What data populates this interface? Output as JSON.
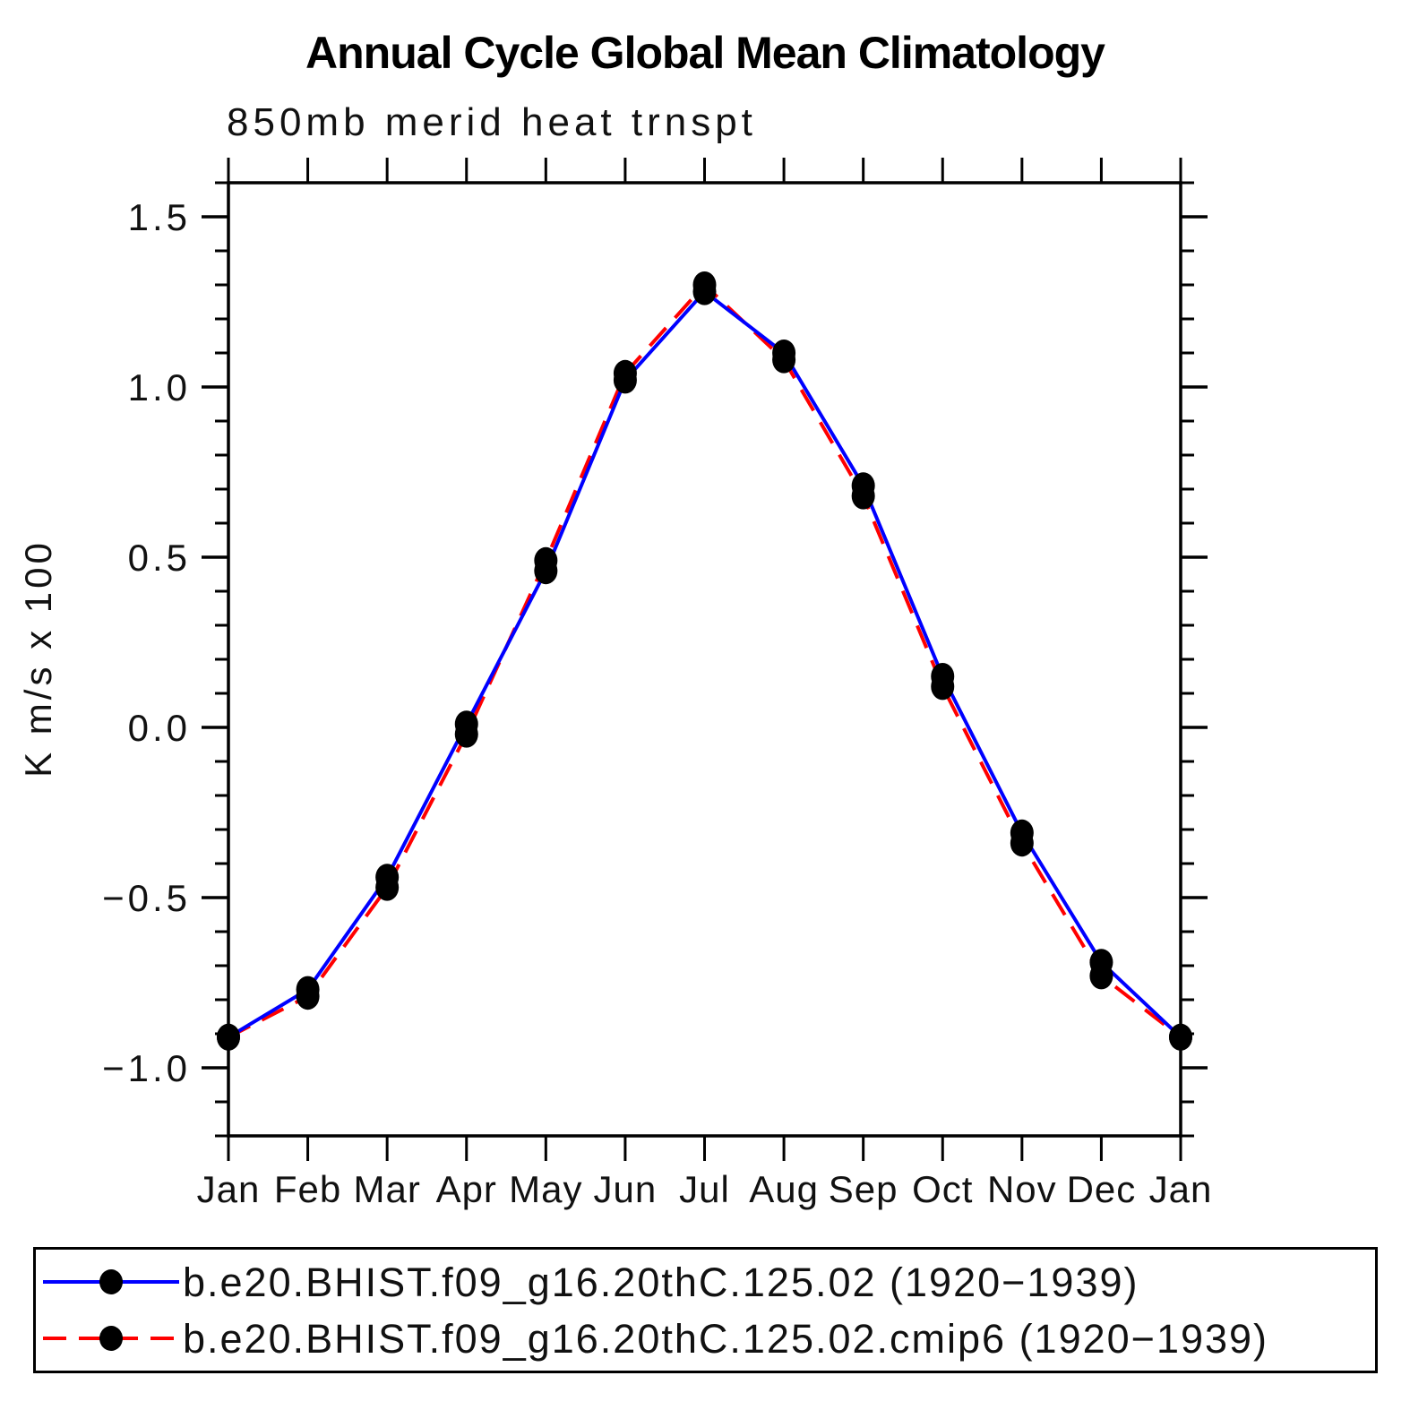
{
  "page_title": "Annual Cycle Global Mean Climatology",
  "chart_data": {
    "type": "line",
    "suptitle": "Annual Cycle Global Mean Climatology",
    "title": "850mb merid heat trnspt",
    "xlabel": "",
    "ylabel": "K m/s x 100",
    "x_tick_labels": [
      "Jan",
      "Feb",
      "Mar",
      "Apr",
      "May",
      "Jun",
      "Jul",
      "Aug",
      "Sep",
      "Oct",
      "Nov",
      "Dec",
      "Jan"
    ],
    "y_tick_values": [
      1.5,
      1.0,
      0.5,
      0.0,
      -0.5,
      -1.0
    ],
    "y_tick_labels": [
      "1.5",
      "1.0",
      "0.5",
      "0.0",
      "−0.5",
      "−1.0"
    ],
    "ylim": [
      -1.2,
      1.6
    ],
    "y_minor_step": 0.1,
    "grid": "off",
    "legend_position": "bottom",
    "frame_color": "#000000",
    "marker_color": "#000000",
    "series": [
      {
        "name": "b.e20.BHIST.f09_g16.20thC.125.02 (1920−1939)",
        "color": "#0000ff",
        "style": "solid",
        "marker": "filled-circle",
        "values": [
          -0.91,
          -0.77,
          -0.44,
          0.01,
          0.46,
          1.02,
          1.28,
          1.1,
          0.71,
          0.15,
          -0.31,
          -0.69,
          -0.91
        ]
      },
      {
        "name": "b.e20.BHIST.f09_g16.20thC.125.02.cmip6 (1920−1939)",
        "color": "#ff0000",
        "style": "dashed",
        "marker": "filled-circle",
        "values": [
          -0.91,
          -0.79,
          -0.47,
          -0.02,
          0.49,
          1.04,
          1.3,
          1.08,
          0.68,
          0.12,
          -0.34,
          -0.73,
          -0.91
        ]
      }
    ]
  }
}
